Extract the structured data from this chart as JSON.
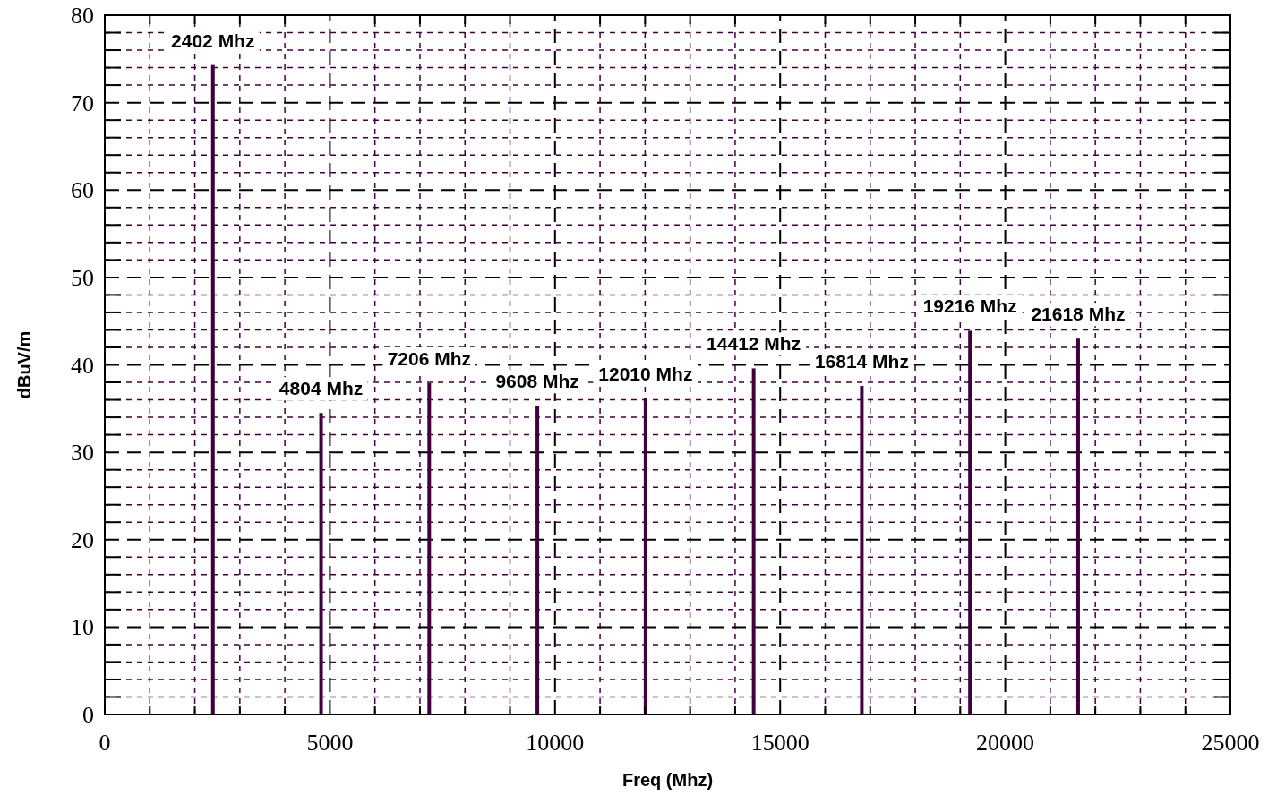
{
  "chart_data": {
    "type": "bar",
    "xlabel": "Freq (Mhz)",
    "ylabel": "dBuV/m",
    "x": [
      2402,
      4804,
      7206,
      9608,
      12010,
      14412,
      16814,
      19216,
      21618
    ],
    "values": [
      74.3,
      34.5,
      37.9,
      35.3,
      36.2,
      39.6,
      37.6,
      43.9,
      43.0
    ],
    "color": "#400040",
    "xlim": [
      0,
      25000
    ],
    "xticks": [
      0,
      {
        "value": 1000,
        "label": null
      },
      {
        "value": 2000,
        "label": null
      },
      {
        "value": 3000,
        "label": null
      },
      {
        "value": 4000,
        "label": null
      },
      5000,
      {
        "value": 6000,
        "label": null
      },
      {
        "value": 7000,
        "label": null
      },
      {
        "value": 8000,
        "label": null
      },
      {
        "value": 9000,
        "label": null
      },
      10000,
      {
        "value": 11000,
        "label": null
      },
      {
        "value": 12000,
        "label": null
      },
      {
        "value": 13000,
        "label": null
      },
      {
        "value": 14000,
        "label": null
      },
      15000,
      {
        "value": 16000,
        "label": null
      },
      {
        "value": 17000,
        "label": null
      },
      {
        "value": 18000,
        "label": null
      },
      {
        "value": 19000,
        "label": null
      },
      20000,
      {
        "value": 21000,
        "label": null
      },
      {
        "value": 22000,
        "label": null
      },
      {
        "value": 23000,
        "label": null
      },
      {
        "value": 24000,
        "label": null
      },
      25000
    ],
    "ylim": [
      0,
      80
    ],
    "yticks": [
      0,
      {
        "value": 2,
        "label": null
      },
      {
        "value": 4,
        "label": null
      },
      {
        "value": 6,
        "label": null
      },
      {
        "value": 8,
        "label": null
      },
      10,
      {
        "value": 12,
        "label": null
      },
      {
        "value": 14,
        "label": null
      },
      {
        "value": 16,
        "label": null
      },
      {
        "value": 18,
        "label": null
      },
      20,
      {
        "value": 22,
        "label": null
      },
      {
        "value": 24,
        "label": null
      },
      {
        "value": 26,
        "label": null
      },
      {
        "value": 28,
        "label": null
      },
      30,
      {
        "value": 32,
        "label": null
      },
      {
        "value": 34,
        "label": null
      },
      {
        "value": 36,
        "label": null
      },
      {
        "value": 38,
        "label": null
      },
      40,
      {
        "value": 42,
        "label": null
      },
      {
        "value": 44,
        "label": null
      },
      {
        "value": 46,
        "label": null
      },
      {
        "value": 48,
        "label": null
      },
      50,
      {
        "value": 52,
        "label": null
      },
      {
        "value": 54,
        "label": null
      },
      {
        "value": 56,
        "label": null
      },
      {
        "value": 58,
        "label": null
      },
      60,
      {
        "value": 62,
        "label": null
      },
      {
        "value": 64,
        "label": null
      },
      {
        "value": 66,
        "label": null
      },
      {
        "value": 68,
        "label": null
      },
      70,
      {
        "value": 72,
        "label": null
      },
      {
        "value": 74,
        "label": null
      },
      {
        "value": 76,
        "label": null
      },
      {
        "value": 78,
        "label": null
      },
      80
    ],
    "grid": true,
    "annotations": [
      {
        "text": "2402 Mhz",
        "x": 2402,
        "y": 74.3
      },
      {
        "text": "4804 Mhz",
        "x": 4804,
        "y": 34.5
      },
      {
        "text": "7206 Mhz",
        "x": 7206,
        "y": 37.9
      },
      {
        "text": "9608 Mhz",
        "x": 9608,
        "y": 35.3
      },
      {
        "text": "12010 Mhz",
        "x": 12010,
        "y": 36.2
      },
      {
        "text": "14412 Mhz",
        "x": 14412,
        "y": 39.6
      },
      {
        "text": "16814 Mhz",
        "x": 16814,
        "y": 37.6
      },
      {
        "text": "19216 Mhz",
        "x": 19216,
        "y": 43.9
      },
      {
        "text": "21618 Mhz",
        "x": 21618,
        "y": 43.0
      }
    ]
  }
}
